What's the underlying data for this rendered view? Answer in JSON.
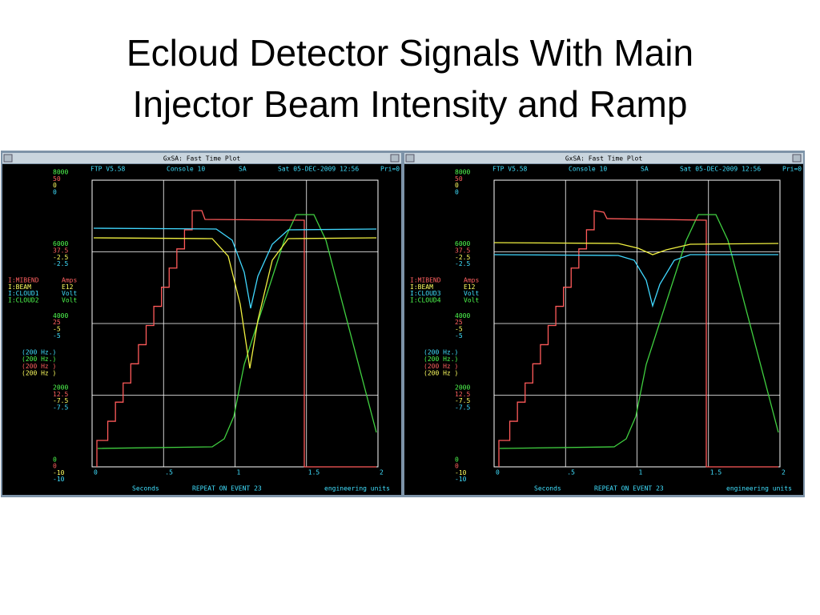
{
  "slide": {
    "title": "Ecloud Detector Signals With Main Injector Beam Intensity and Ramp"
  },
  "windows": [
    {
      "title": "GxSA: Fast Time Plot",
      "header": [
        "FTP V5.58",
        "Console  10",
        "SA",
        "Sat 05-DEC-2009 12:56",
        "Pri=0"
      ],
      "y_labels": [
        [
          "8000",
          "50",
          "0",
          "0"
        ],
        [
          "6000",
          "37.5",
          "-2.5",
          "-2.5"
        ],
        [
          "4000",
          "25",
          "-5",
          "-5"
        ],
        [
          "2000",
          "12.5",
          "-7.5",
          "-7.5"
        ],
        [
          "0",
          "0",
          "-10",
          "-10"
        ]
      ],
      "devices": [
        [
          "I:MIBEND",
          "Amps"
        ],
        [
          "I:BEAM",
          "E12"
        ],
        [
          "I:CLOUD1",
          "Volt"
        ],
        [
          "I:CLOUD2",
          "Volt"
        ]
      ],
      "rates": [
        "(200  Hz.)",
        "(200  Hz.)",
        "(200  Hz )",
        "(200  Hz )"
      ],
      "x_ticks": [
        "0",
        ".5",
        "1",
        "1.5",
        "2"
      ],
      "footer": [
        "Seconds",
        "REPEAT ON EVENT 23",
        "engineering units"
      ]
    },
    {
      "title": "GxSA: Fast Time Plot",
      "header": [
        "FTP V5.58",
        "Console  10",
        "SA",
        "Sat 05-DEC-2009 12:56",
        "Pri=0"
      ],
      "y_labels": [
        [
          "8000",
          "50",
          "0",
          "0"
        ],
        [
          "6000",
          "37.5",
          "-2.5",
          "-2.5"
        ],
        [
          "4000",
          "25",
          "-5",
          "-5"
        ],
        [
          "2000",
          "12.5",
          "-7.5",
          "-7.5"
        ],
        [
          "0",
          "0",
          "-10",
          "-10"
        ]
      ],
      "devices": [
        [
          "I:MIBEND",
          "Amps"
        ],
        [
          "I:BEAM",
          "E12"
        ],
        [
          "I:CLOUD3",
          "Volt"
        ],
        [
          "I:CLOUD4",
          "Volt"
        ]
      ],
      "rates": [
        "(200  Hz.)",
        "(200  Hz.)",
        "(200  Hz )",
        "(200  Hz )"
      ],
      "x_ticks": [
        "0",
        ".5",
        "1",
        "1.5",
        "2"
      ],
      "footer": [
        "Seconds",
        "REPEAT ON EVENT 23",
        "engineering units"
      ]
    }
  ]
}
